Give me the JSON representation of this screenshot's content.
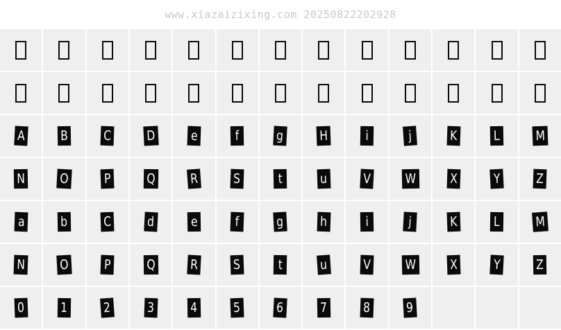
{
  "watermark": "www.xiazaizixing.com 20250822202928",
  "colors": {
    "page_bg": "#ffffff",
    "cell_bg": "#efefef",
    "gutter": "#ffffff",
    "tag_bg": "#0a0a0a",
    "tag_text": "#ffffff",
    "notdef_border": "#0a0a0a",
    "watermark_text": "#c8c8c8"
  },
  "grid": {
    "columns": 13,
    "rows": [
      {
        "name": "undefined-glyphs-row-1",
        "type": "notdef",
        "count": 13
      },
      {
        "name": "undefined-glyphs-row-2",
        "type": "notdef",
        "count": 13
      },
      {
        "name": "uppercase-a-to-m",
        "type": "glyphs",
        "chars": [
          "A",
          "B",
          "C",
          "D",
          "E",
          "F",
          "G",
          "H",
          "I",
          "J",
          "K",
          "L",
          "M"
        ],
        "display": [
          "A",
          "B",
          "C",
          "D",
          "e",
          "f",
          "g",
          "H",
          "i",
          "j",
          "K",
          "L",
          "M"
        ]
      },
      {
        "name": "uppercase-n-to-z",
        "type": "glyphs",
        "chars": [
          "N",
          "O",
          "P",
          "Q",
          "R",
          "S",
          "T",
          "U",
          "V",
          "W",
          "X",
          "Y",
          "Z"
        ],
        "display": [
          "N",
          "O",
          "P",
          "Q",
          "R",
          "S",
          "t",
          "u",
          "V",
          "W",
          "X",
          "Y",
          "Z"
        ]
      },
      {
        "name": "lowercase-a-to-m",
        "type": "glyphs",
        "chars": [
          "a",
          "b",
          "c",
          "d",
          "e",
          "f",
          "g",
          "h",
          "i",
          "j",
          "k",
          "l",
          "m"
        ],
        "display": [
          "a",
          "b",
          "C",
          "d",
          "e",
          "f",
          "g",
          "h",
          "i",
          "j",
          "K",
          "L",
          "M"
        ]
      },
      {
        "name": "lowercase-n-to-z",
        "type": "glyphs",
        "chars": [
          "n",
          "o",
          "p",
          "q",
          "r",
          "s",
          "t",
          "u",
          "v",
          "w",
          "x",
          "y",
          "z"
        ],
        "display": [
          "N",
          "O",
          "P",
          "Q",
          "R",
          "S",
          "t",
          "u",
          "V",
          "W",
          "X",
          "Y",
          "Z"
        ]
      },
      {
        "name": "digits-0-to-9",
        "type": "glyphs",
        "chars": [
          "0",
          "1",
          "2",
          "3",
          "4",
          "5",
          "6",
          "7",
          "8",
          "9"
        ],
        "display": [
          "0",
          "1",
          "2",
          "3",
          "4",
          "5",
          "6",
          "7",
          "8",
          "9"
        ],
        "trailing_empty": 3
      }
    ]
  }
}
